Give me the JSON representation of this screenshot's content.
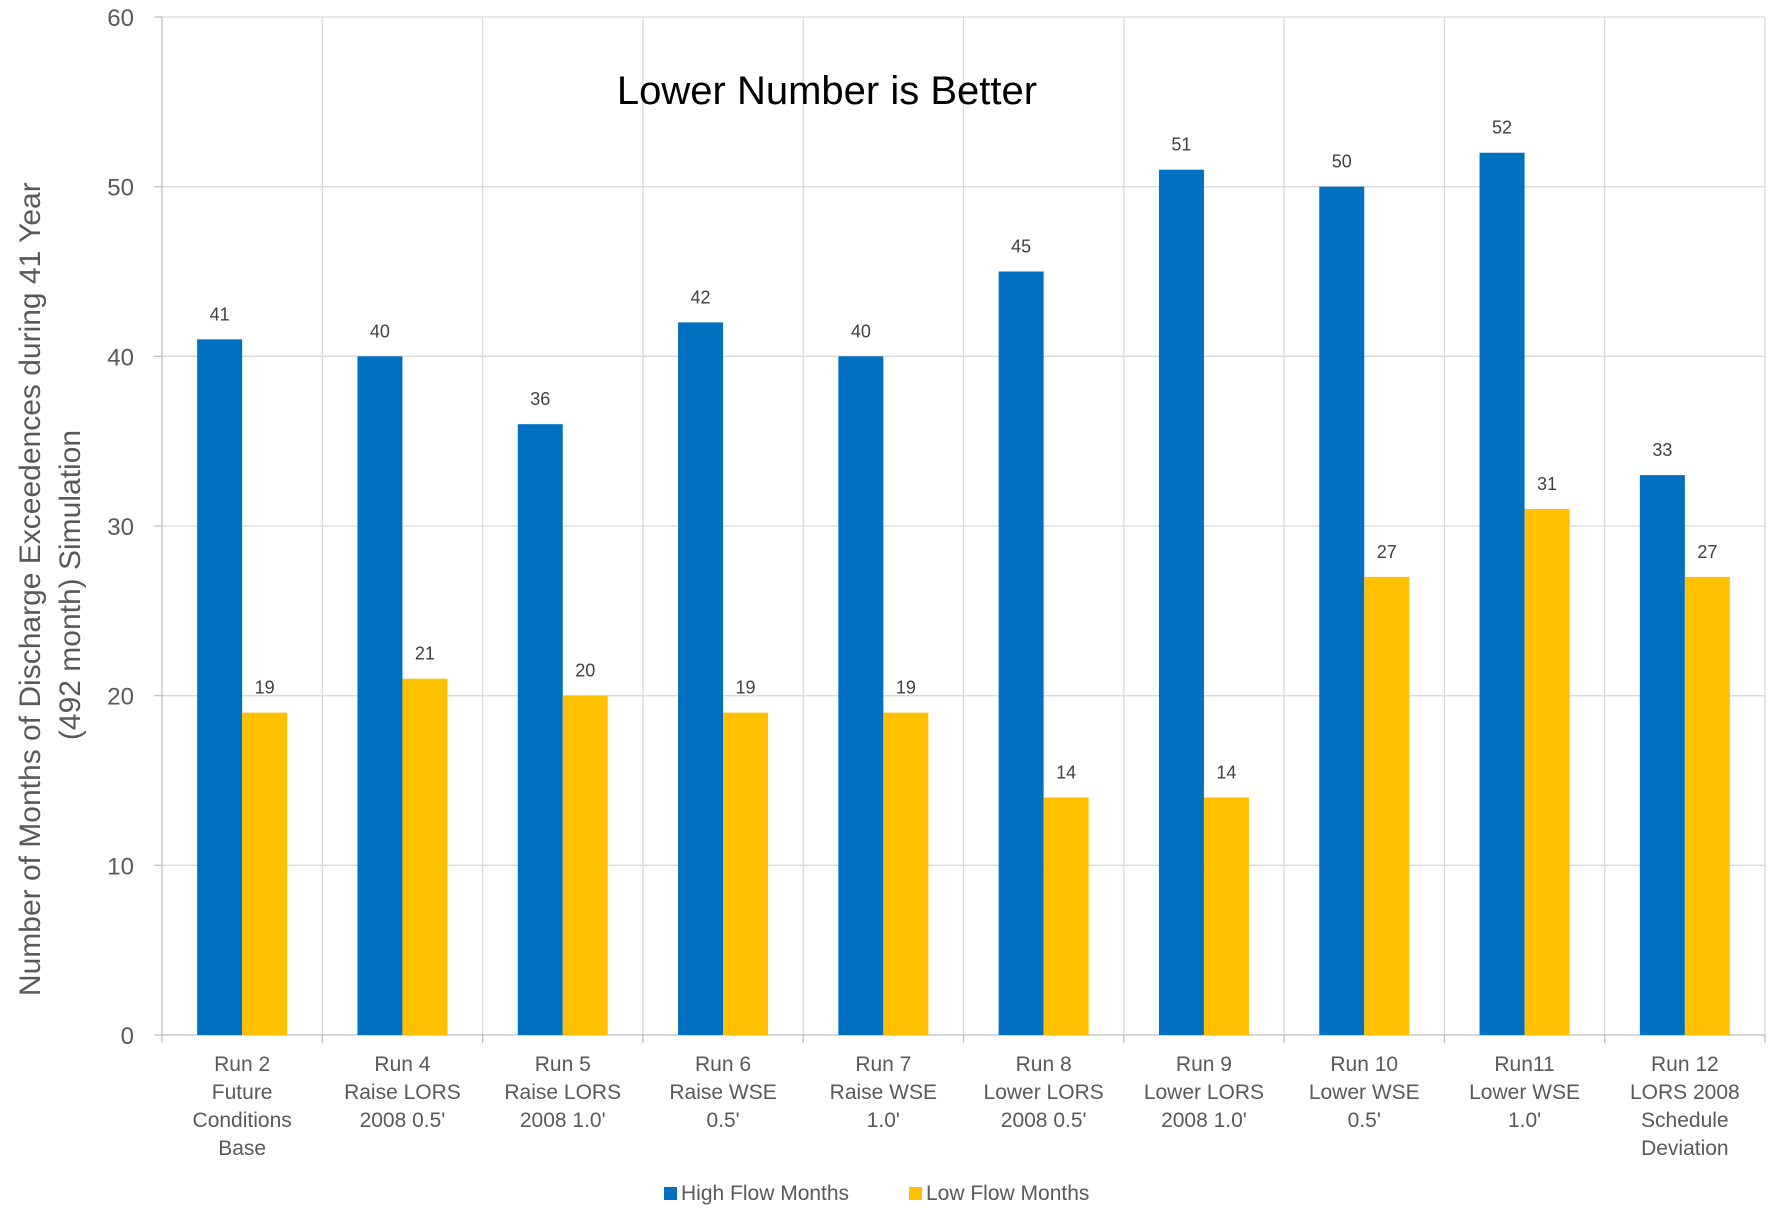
{
  "chart_data": {
    "type": "bar",
    "ylabel": [
      "Number of Months of  Discharge Exceedences during 41 Year",
      "(492 month) Simulation"
    ],
    "annotation": "Lower Number is Better",
    "ylim": [
      0,
      60
    ],
    "yticks": [
      0,
      10,
      20,
      30,
      40,
      50,
      60
    ],
    "grid": true,
    "legend_position": "bottom",
    "categories": [
      [
        "Run 2",
        "Future",
        "Conditions",
        "Base"
      ],
      [
        "Run 4",
        "Raise LORS",
        "2008 0.5'"
      ],
      [
        "Run 5",
        "Raise LORS",
        "2008 1.0'"
      ],
      [
        "Run 6",
        "Raise WSE",
        "0.5'"
      ],
      [
        "Run 7",
        "Raise WSE",
        "1.0'"
      ],
      [
        "Run 8",
        "Lower LORS",
        "2008 0.5'"
      ],
      [
        "Run 9",
        "Lower LORS",
        "2008 1.0'"
      ],
      [
        "Run 10",
        "Lower WSE",
        "0.5'"
      ],
      [
        "Run11",
        "Lower WSE",
        "1.0'"
      ],
      [
        "Run 12",
        "LORS 2008",
        "Schedule",
        "Deviation"
      ]
    ],
    "series": [
      {
        "name": "High Flow Months",
        "color": "#0070C0",
        "values": [
          41,
          40,
          36,
          42,
          40,
          45,
          51,
          50,
          52,
          33
        ]
      },
      {
        "name": "Low Flow Months",
        "color": "#FFC000",
        "values": [
          19,
          21,
          20,
          19,
          19,
          14,
          14,
          27,
          31,
          27
        ]
      }
    ]
  }
}
